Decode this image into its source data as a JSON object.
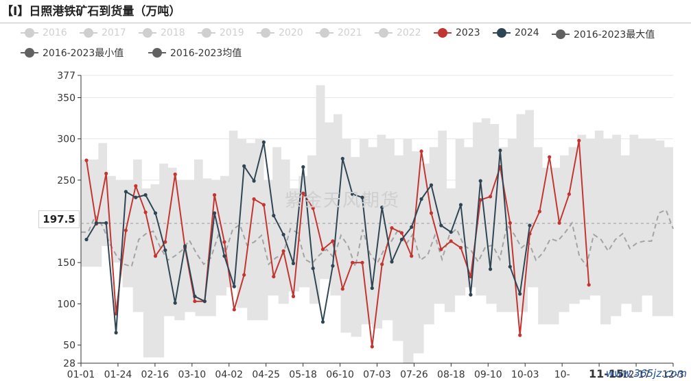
{
  "title": "【I】日照港铁矿石到货量（万吨）",
  "watermark": "紫金天风期货",
  "site_watermark": "www.365jz.com",
  "colors": {
    "grey_inactive": "#cfcfcf",
    "red_2023": "#c23531",
    "navy_2024": "#2f4554",
    "band": "#e4e4e4",
    "avg": "#9a9a9a",
    "max": "#616161",
    "min": "#616161"
  },
  "legend": [
    {
      "label": "2016",
      "color": "#cfcfcf",
      "inactive": true
    },
    {
      "label": "2017",
      "color": "#cfcfcf",
      "inactive": true
    },
    {
      "label": "2018",
      "color": "#cfcfcf",
      "inactive": true
    },
    {
      "label": "2019",
      "color": "#cfcfcf",
      "inactive": true
    },
    {
      "label": "2020",
      "color": "#cfcfcf",
      "inactive": true
    },
    {
      "label": "2021",
      "color": "#cfcfcf",
      "inactive": true
    },
    {
      "label": "2022",
      "color": "#cfcfcf",
      "inactive": true
    },
    {
      "label": "2023",
      "color": "#c23531",
      "inactive": false
    },
    {
      "label": "2024",
      "color": "#2f4554",
      "inactive": false
    },
    {
      "label": "2016-2023最大值",
      "color": "#616161",
      "inactive": false
    },
    {
      "label": "2016-2023最小值",
      "color": "#616161",
      "inactive": false
    },
    {
      "label": "2016-2023均值",
      "color": "#616161",
      "inactive": false
    }
  ],
  "tooltip": {
    "y_label": "197.5",
    "x_label": "11-15"
  },
  "chart_data": {
    "type": "line",
    "title": "【I】日照港铁矿石到货量（万吨）",
    "ylim": [
      28,
      377
    ],
    "y_ticks": [
      28,
      50,
      100,
      150,
      197.5,
      250,
      300,
      350,
      377
    ],
    "x_ticks": [
      "01-01",
      "01-24",
      "02-16",
      "03-10",
      "04-02",
      "04-25",
      "05-18",
      "06-10",
      "07-03",
      "07-26",
      "08-18",
      "09-10",
      "10-03",
      "10-",
      "11-15",
      "12-17",
      "12-3"
    ],
    "series": [
      {
        "name": "2023",
        "values": [
          274,
          197,
          258,
          88,
          189,
          243,
          211,
          158,
          175,
          257,
          168,
          103,
          103,
          232,
          175,
          93,
          135,
          227,
          220,
          133,
          164,
          109,
          234,
          216,
          166,
          176,
          118,
          150,
          150,
          48,
          148,
          192,
          186,
          158,
          285,
          210,
          166,
          176,
          168,
          133,
          226,
          230,
          266,
          198,
          62,
          185,
          212,
          278,
          198,
          233,
          298,
          123
        ]
      },
      {
        "name": "2024",
        "values": [
          178,
          198,
          198,
          65,
          236,
          229,
          232,
          210,
          165,
          101,
          170,
          109,
          103,
          210,
          158,
          121,
          267,
          249,
          296,
          207,
          184,
          149,
          266,
          143,
          78,
          146,
          276,
          233,
          229,
          119,
          217,
          151,
          178,
          193,
          227,
          244,
          195,
          187,
          220,
          111,
          249,
          142,
          286,
          145,
          112,
          195
        ]
      },
      {
        "name": "2016-2023均值",
        "values": [
          187,
          187,
          207,
          194,
          173,
          157,
          148,
          145,
          178,
          185,
          188,
          168,
          153,
          158,
          165,
          177,
          161,
          148,
          156,
          183,
          162,
          190,
          196,
          171,
          175,
          183,
          148,
          156,
          160,
          191,
          186,
          154,
          149,
          159,
          166,
          156,
          183,
          170,
          145,
          190,
          161,
          149,
          166,
          176,
          191,
          172,
          185,
          153,
          159,
          183,
          154,
          183,
          191,
          171,
          165,
          151,
          169,
          171,
          154,
          196,
          184,
          168,
          175,
          153,
          162,
          179,
          176,
          186,
          198,
          158,
          146,
          184,
          178,
          164,
          178,
          185,
          167,
          174,
          176,
          176,
          210,
          214,
          191
        ]
      },
      {
        "name": "2016-2023最大值",
        "values": [
          275,
          275,
          295,
          255,
          250,
          250,
          275,
          240,
          245,
          270,
          265,
          250,
          250,
          275,
          252,
          250,
          255,
          310,
          300,
          295,
          300,
          250,
          290,
          275,
          240,
          255,
          280,
          365,
          320,
          330,
          300,
          278,
          300,
          290,
          305,
          300,
          280,
          300,
          285,
          270,
          290,
          310,
          240,
          300,
          290,
          320,
          325,
          318,
          290,
          300,
          330,
          335,
          290,
          265,
          265,
          280,
          290,
          305,
          300,
          310,
          300,
          305,
          280,
          305,
          300,
          300,
          298,
          290
        ]
      },
      {
        "name": "2016-2023最小值",
        "values": [
          145,
          145,
          170,
          150,
          120,
          90,
          35,
          35,
          85,
          80,
          90,
          85,
          85,
          110,
          120,
          95,
          80,
          80,
          110,
          100,
          115,
          120,
          100,
          130,
          110,
          65,
          60,
          75,
          70,
          80,
          55,
          28,
          40,
          75,
          100,
          90,
          110,
          120,
          110,
          100,
          90,
          90,
          90,
          120,
          75,
          75,
          90,
          100,
          105,
          110,
          75,
          85,
          100,
          90,
          110,
          85,
          85
        ]
      }
    ]
  }
}
